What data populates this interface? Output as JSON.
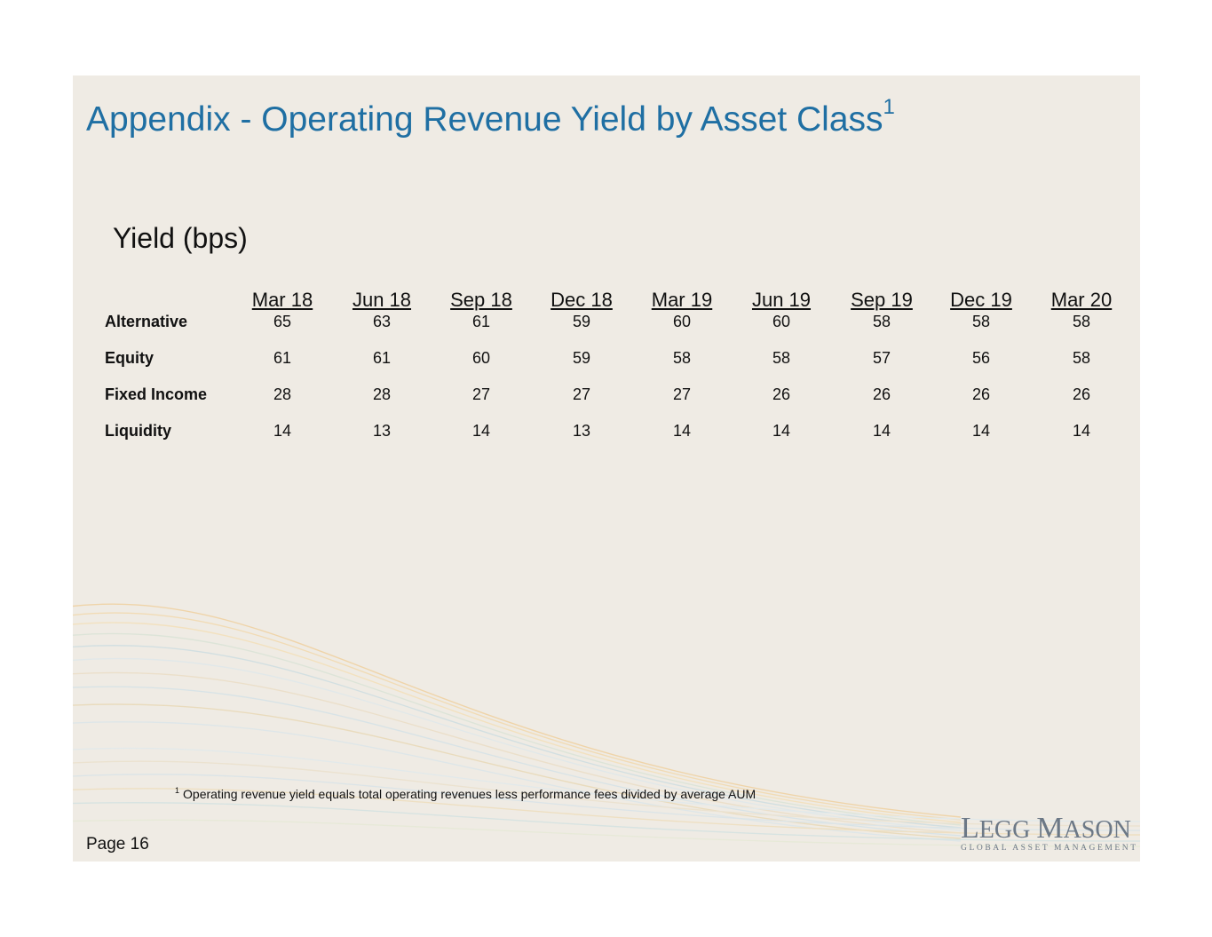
{
  "title": "Appendix - Operating Revenue Yield by Asset Class",
  "title_superscript": "1",
  "subtitle": "Yield (bps)",
  "columns": [
    "Mar 18",
    "Jun 18",
    "Sep 18",
    "Dec 18",
    "Mar 19",
    "Jun 19",
    "Sep 19",
    "Dec 19",
    "Mar 20"
  ],
  "rows": [
    {
      "label": "Alternative",
      "values": [
        "65",
        "63",
        "61",
        "59",
        "60",
        "60",
        "58",
        "58",
        "58"
      ]
    },
    {
      "label": "Equity",
      "values": [
        "61",
        "61",
        "60",
        "59",
        "58",
        "58",
        "57",
        "56",
        "58"
      ]
    },
    {
      "label": "Fixed Income",
      "values": [
        "28",
        "28",
        "27",
        "27",
        "27",
        "26",
        "26",
        "26",
        "26"
      ]
    },
    {
      "label": "Liquidity",
      "values": [
        "14",
        "13",
        "14",
        "13",
        "14",
        "14",
        "14",
        "14",
        "14"
      ]
    }
  ],
  "footnote": {
    "marker": "1",
    "text": "Operating revenue yield equals total operating revenues less performance fees divided by average AUM"
  },
  "page_label": "Page 16",
  "logo": {
    "name_part1_initial": "L",
    "name_part1_rest": "EGG",
    "name_part2_initial": "M",
    "name_part2_rest": "ASON",
    "tagline": "GLOBAL ASSET MANAGEMENT"
  },
  "colors": {
    "title": "#1f6fa3",
    "background": "#efebe4",
    "logo": "#6c7886"
  }
}
